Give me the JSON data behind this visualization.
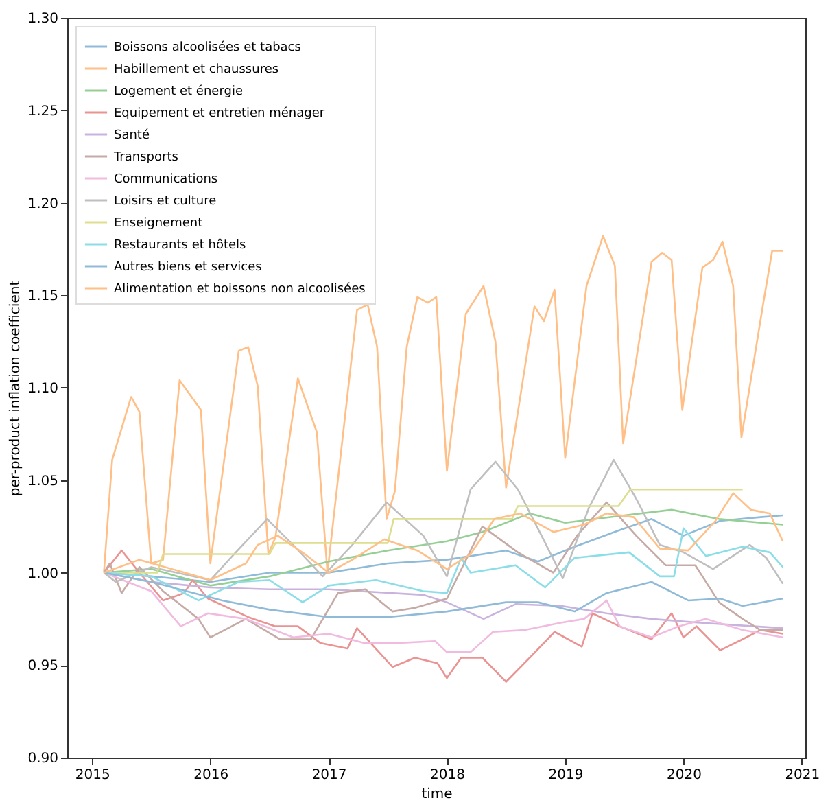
{
  "chart_data": {
    "type": "line",
    "xlabel": "time",
    "ylabel": "per-product inflation coefficient",
    "xlim": [
      2014.79,
      2021.03
    ],
    "xticks": [
      2015,
      2016,
      2017,
      2018,
      2019,
      2020,
      2021
    ],
    "ylim": [
      0.9,
      1.3
    ],
    "yticks": [
      {
        "value": 0.9,
        "label": "0.90"
      },
      {
        "value": 0.95,
        "label": "0.95"
      },
      {
        "value": 1.0,
        "label": "1.00"
      },
      {
        "value": 1.05,
        "label": "1.05"
      },
      {
        "value": 1.1,
        "label": "1.10"
      },
      {
        "value": 1.15,
        "label": "1.15"
      },
      {
        "value": 1.2,
        "label": "1.20"
      },
      {
        "value": 1.25,
        "label": "1.25"
      },
      {
        "value": 1.3,
        "label": "1.30"
      }
    ],
    "legend": "top left",
    "grid": false,
    "marker": "none",
    "line_style": "solid",
    "series": [
      {
        "name": "Boissons alcoolisées et tabacs",
        "color": "#8fbbd9",
        "x": [
          2015.1,
          2015.5,
          2016.0,
          2016.5,
          2017.0,
          2017.5,
          2018.0,
          2018.5,
          2018.77,
          2019.08,
          2019.46,
          2019.73,
          2020.0,
          2020.31,
          2020.65,
          2020.84
        ],
        "values": [
          1.0,
          0.998,
          0.995,
          1.0,
          1.0,
          1.005,
          1.007,
          1.012,
          1.006,
          1.014,
          1.023,
          1.029,
          1.02,
          1.028,
          1.03,
          1.031
        ]
      },
      {
        "name": "Habillement et chaussures",
        "color": "#ffbf86",
        "x": [
          2015.1,
          2015.17,
          2015.33,
          2015.4,
          2015.5,
          2015.6,
          2015.74,
          2015.92,
          2016.0,
          2016.24,
          2016.32,
          2016.4,
          2016.49,
          2016.55,
          2016.74,
          2016.9,
          2016.99,
          2017.24,
          2017.33,
          2017.41,
          2017.49,
          2017.56,
          2017.66,
          2017.75,
          2017.84,
          2017.91,
          2018.0,
          2018.16,
          2018.31,
          2018.41,
          2018.5,
          2018.74,
          2018.82,
          2018.91,
          2019.0,
          2019.18,
          2019.32,
          2019.42,
          2019.49,
          2019.73,
          2019.82,
          2019.9,
          2019.99,
          2020.16,
          2020.25,
          2020.33,
          2020.42,
          2020.49,
          2020.67,
          2020.75,
          2020.84
        ],
        "values": [
          1.0,
          1.061,
          1.095,
          1.087,
          1.005,
          1.007,
          1.104,
          1.088,
          1.005,
          1.12,
          1.122,
          1.101,
          1.01,
          1.019,
          1.105,
          1.076,
          1.0,
          1.142,
          1.145,
          1.122,
          1.029,
          1.044,
          1.122,
          1.149,
          1.146,
          1.149,
          1.055,
          1.14,
          1.155,
          1.125,
          1.046,
          1.144,
          1.136,
          1.153,
          1.062,
          1.155,
          1.182,
          1.166,
          1.07,
          1.168,
          1.173,
          1.169,
          1.088,
          1.165,
          1.169,
          1.179,
          1.155,
          1.073,
          1.144,
          1.174,
          1.174
        ]
      },
      {
        "name": "Logement et énergie",
        "color": "#95cf95",
        "x": [
          2015.1,
          2015.5,
          2016.0,
          2016.5,
          2017.0,
          2017.5,
          2018.0,
          2018.3,
          2018.7,
          2019.0,
          2019.5,
          2019.9,
          2020.3,
          2020.84
        ],
        "values": [
          1.0,
          1.002,
          0.993,
          0.998,
          1.006,
          1.012,
          1.017,
          1.022,
          1.032,
          1.027,
          1.031,
          1.034,
          1.029,
          1.026
        ]
      },
      {
        "name": "Equipement et entretien ménager",
        "color": "#ea9393",
        "x": [
          2015.1,
          2015.25,
          2015.4,
          2015.6,
          2015.78,
          2015.85,
          2015.98,
          2016.32,
          2016.55,
          2016.74,
          2016.93,
          2017.16,
          2017.24,
          2017.54,
          2017.73,
          2017.92,
          2018.0,
          2018.12,
          2018.3,
          2018.5,
          2018.7,
          2018.91,
          2019.14,
          2019.23,
          2019.46,
          2019.73,
          2019.9,
          2020.0,
          2020.11,
          2020.31,
          2020.5,
          2020.65,
          2020.84
        ],
        "values": [
          1.0,
          1.012,
          1.0,
          0.985,
          0.989,
          0.996,
          0.986,
          0.976,
          0.971,
          0.971,
          0.962,
          0.959,
          0.97,
          0.949,
          0.954,
          0.951,
          0.943,
          0.954,
          0.954,
          0.941,
          0.954,
          0.968,
          0.96,
          0.978,
          0.971,
          0.964,
          0.978,
          0.965,
          0.971,
          0.958,
          0.964,
          0.969,
          0.967
        ]
      },
      {
        "name": "Santé",
        "color": "#c9b3de",
        "x": [
          2015.1,
          2015.5,
          2016.0,
          2016.5,
          2017.0,
          2017.8,
          2018.0,
          2018.31,
          2018.58,
          2018.97,
          2019.35,
          2019.73,
          2020.12,
          2020.84
        ],
        "values": [
          1.0,
          0.995,
          0.992,
          0.991,
          0.991,
          0.988,
          0.984,
          0.975,
          0.983,
          0.982,
          0.978,
          0.975,
          0.973,
          0.97
        ]
      },
      {
        "name": "Transports",
        "color": "#c5aaa5",
        "x": [
          2015.1,
          2015.15,
          2015.25,
          2015.4,
          2015.6,
          2015.9,
          2016.0,
          2016.3,
          2016.59,
          2016.85,
          2017.08,
          2017.31,
          2017.54,
          2017.73,
          2018.0,
          2018.3,
          2018.6,
          2018.9,
          2019.1,
          2019.35,
          2019.6,
          2019.85,
          2020.1,
          2020.3,
          2020.5,
          2020.65,
          2020.84
        ],
        "values": [
          1.0,
          1.005,
          0.989,
          1.003,
          0.99,
          0.975,
          0.965,
          0.975,
          0.964,
          0.964,
          0.989,
          0.991,
          0.979,
          0.981,
          0.986,
          1.025,
          1.011,
          1.0,
          1.02,
          1.038,
          1.02,
          1.004,
          1.004,
          0.984,
          0.975,
          0.969,
          0.969
        ]
      },
      {
        "name": "Communications",
        "color": "#f1bbe0",
        "x": [
          2015.1,
          2015.5,
          2015.75,
          2015.98,
          2016.3,
          2016.7,
          2017.0,
          2017.3,
          2017.6,
          2017.9,
          2018.0,
          2018.2,
          2018.39,
          2018.66,
          2018.97,
          2019.16,
          2019.35,
          2019.46,
          2019.73,
          2019.96,
          2020.19,
          2020.5,
          2020.84
        ],
        "values": [
          1.0,
          0.99,
          0.971,
          0.978,
          0.975,
          0.965,
          0.967,
          0.962,
          0.962,
          0.963,
          0.957,
          0.957,
          0.968,
          0.969,
          0.973,
          0.975,
          0.985,
          0.971,
          0.965,
          0.971,
          0.975,
          0.969,
          0.965
        ]
      },
      {
        "name": "Loisirs et culture",
        "color": "#bfbfbf",
        "x": [
          2015.1,
          2015.2,
          2015.5,
          2016.0,
          2016.2,
          2016.48,
          2016.7,
          2016.95,
          2017.2,
          2017.49,
          2017.8,
          2018.0,
          2018.2,
          2018.41,
          2018.6,
          2018.8,
          2018.98,
          2019.2,
          2019.41,
          2019.6,
          2019.8,
          2020.0,
          2020.25,
          2020.56,
          2020.7,
          2020.84
        ],
        "values": [
          1.0,
          0.995,
          1.003,
          0.996,
          1.01,
          1.029,
          1.015,
          0.998,
          1.015,
          1.038,
          1.02,
          0.998,
          1.045,
          1.06,
          1.045,
          1.02,
          0.997,
          1.035,
          1.061,
          1.04,
          1.015,
          1.011,
          1.002,
          1.015,
          1.008,
          0.994
        ]
      },
      {
        "name": "Enseignement",
        "color": "#ddde90",
        "x": [
          2015.1,
          2015.55,
          2015.6,
          2016.5,
          2016.55,
          2017.5,
          2017.55,
          2018.55,
          2018.6,
          2019.45,
          2019.55,
          2020.5
        ],
        "values": [
          1.0,
          1.0,
          1.01,
          1.01,
          1.016,
          1.016,
          1.029,
          1.029,
          1.036,
          1.036,
          1.045,
          1.045
        ]
      },
      {
        "name": "Restaurants et hôtels",
        "color": "#8bdee7",
        "x": [
          2015.1,
          2015.5,
          2015.9,
          2016.24,
          2016.5,
          2016.78,
          2017.0,
          2017.4,
          2017.8,
          2018.0,
          2018.12,
          2018.2,
          2018.58,
          2018.83,
          2019.08,
          2019.54,
          2019.8,
          2019.92,
          2020.0,
          2020.19,
          2020.5,
          2020.73,
          2020.84
        ],
        "values": [
          1.0,
          0.998,
          0.985,
          0.995,
          0.996,
          0.984,
          0.993,
          0.996,
          0.99,
          0.989,
          1.008,
          1.0,
          1.004,
          0.992,
          1.008,
          1.011,
          0.998,
          0.998,
          1.024,
          1.009,
          1.014,
          1.011,
          1.003
        ]
      },
      {
        "name": "Autres biens et services",
        "color": "#8fbbd9",
        "x": [
          2015.1,
          2015.5,
          2015.8,
          2016.1,
          2016.5,
          2017.0,
          2017.5,
          2018.0,
          2018.5,
          2018.77,
          2019.08,
          2019.35,
          2019.73,
          2020.04,
          2020.31,
          2020.5,
          2020.84
        ],
        "values": [
          1.0,
          0.995,
          0.99,
          0.985,
          0.98,
          0.976,
          0.976,
          0.979,
          0.984,
          0.984,
          0.979,
          0.989,
          0.995,
          0.985,
          0.986,
          0.982,
          0.986
        ]
      },
      {
        "name": "Alimentation et boissons non alcoolisées",
        "color": "#ffbf86",
        "x": [
          2015.1,
          2015.4,
          2016.0,
          2016.3,
          2016.4,
          2016.57,
          2016.8,
          2017.0,
          2017.2,
          2017.47,
          2017.75,
          2018.0,
          2018.2,
          2018.4,
          2018.62,
          2018.9,
          2019.16,
          2019.35,
          2019.58,
          2019.8,
          2020.04,
          2020.27,
          2020.42,
          2020.57,
          2020.73,
          2020.84
        ],
        "values": [
          1.0,
          1.007,
          0.996,
          1.005,
          1.015,
          1.02,
          1.01,
          1.0,
          1.007,
          1.018,
          1.012,
          1.002,
          1.01,
          1.029,
          1.032,
          1.022,
          1.026,
          1.032,
          1.03,
          1.013,
          1.012,
          1.028,
          1.043,
          1.034,
          1.032,
          1.017
        ]
      }
    ]
  }
}
